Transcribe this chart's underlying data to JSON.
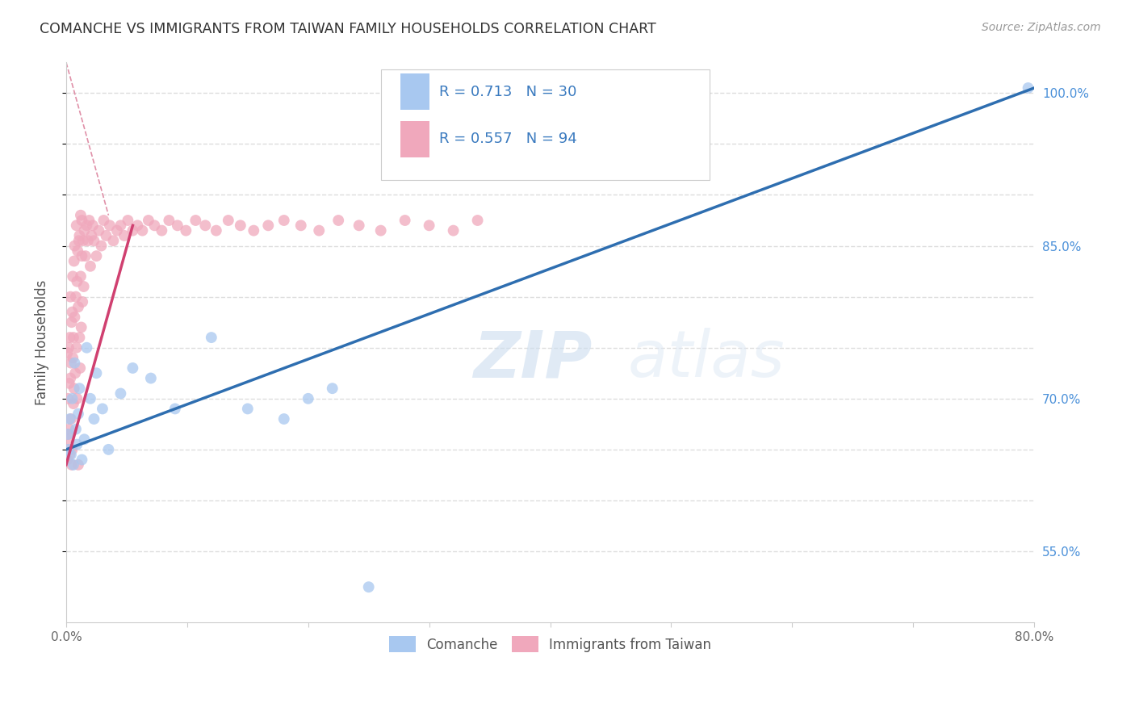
{
  "title": "COMANCHE VS IMMIGRANTS FROM TAIWAN FAMILY HOUSEHOLDS CORRELATION CHART",
  "source": "Source: ZipAtlas.com",
  "ylabel": "Family Households",
  "x_range": [
    0.0,
    80.0
  ],
  "y_range": [
    48.0,
    103.0
  ],
  "blue_R": 0.713,
  "blue_N": 30,
  "pink_R": 0.557,
  "pink_N": 94,
  "blue_color": "#a8c8f0",
  "pink_color": "#f0a8bc",
  "blue_line_color": "#2e6eb0",
  "pink_line_color": "#d04070",
  "pink_dash_color": "#e090a8",
  "legend_label_blue": "Comanche",
  "legend_label_pink": "Immigrants from Taiwan",
  "watermark": "ZIPatlas",
  "background_color": "#ffffff",
  "grid_color": "#dddddd",
  "title_color": "#333333",
  "axis_label_color": "#555555",
  "right_axis_color": "#4a90d9",
  "legend_text_color": "#3a7abf",
  "blue_scatter_x": [
    0.15,
    0.2,
    0.3,
    0.4,
    0.5,
    0.6,
    0.7,
    0.8,
    0.9,
    1.0,
    1.1,
    1.3,
    1.5,
    1.7,
    2.0,
    2.3,
    2.5,
    3.0,
    3.5,
    4.5,
    5.5,
    7.0,
    9.0,
    12.0,
    15.0,
    18.0,
    20.0,
    22.0,
    25.0,
    79.5
  ],
  "blue_scatter_y": [
    66.5,
    65.0,
    68.0,
    64.5,
    70.0,
    63.5,
    73.5,
    67.0,
    65.5,
    68.5,
    71.0,
    64.0,
    66.0,
    75.0,
    70.0,
    68.0,
    72.5,
    69.0,
    65.0,
    70.5,
    73.0,
    72.0,
    69.0,
    76.0,
    69.0,
    68.0,
    70.0,
    71.0,
    51.5,
    100.5
  ],
  "pink_scatter_x": [
    0.05,
    0.1,
    0.1,
    0.15,
    0.15,
    0.2,
    0.2,
    0.25,
    0.25,
    0.3,
    0.3,
    0.35,
    0.35,
    0.4,
    0.4,
    0.45,
    0.45,
    0.5,
    0.5,
    0.55,
    0.55,
    0.6,
    0.6,
    0.65,
    0.65,
    0.7,
    0.7,
    0.75,
    0.8,
    0.85,
    0.85,
    0.9,
    0.9,
    0.95,
    1.0,
    1.0,
    1.05,
    1.1,
    1.1,
    1.15,
    1.2,
    1.2,
    1.25,
    1.3,
    1.3,
    1.35,
    1.4,
    1.45,
    1.5,
    1.6,
    1.7,
    1.8,
    1.9,
    2.0,
    2.1,
    2.2,
    2.3,
    2.5,
    2.7,
    2.9,
    3.1,
    3.3,
    3.6,
    3.9,
    4.2,
    4.5,
    4.8,
    5.1,
    5.5,
    5.9,
    6.3,
    6.8,
    7.3,
    7.9,
    8.5,
    9.2,
    9.9,
    10.7,
    11.5,
    12.4,
    13.4,
    14.4,
    15.5,
    16.7,
    18.0,
    19.4,
    20.9,
    22.5,
    24.2,
    26.0,
    28.0,
    30.0,
    32.0,
    34.0
  ],
  "pink_scatter_y": [
    66.0,
    64.0,
    74.5,
    70.0,
    66.5,
    65.0,
    75.0,
    71.5,
    67.0,
    76.0,
    64.5,
    72.0,
    80.0,
    68.0,
    73.5,
    77.5,
    63.5,
    78.5,
    65.0,
    74.0,
    82.0,
    69.5,
    76.0,
    83.5,
    71.0,
    78.0,
    85.0,
    72.5,
    80.0,
    75.0,
    87.0,
    81.5,
    70.0,
    84.5,
    63.5,
    79.0,
    85.5,
    76.0,
    86.0,
    73.0,
    82.0,
    88.0,
    77.0,
    84.0,
    87.5,
    79.5,
    85.5,
    81.0,
    86.5,
    84.0,
    87.0,
    85.5,
    87.5,
    83.0,
    86.0,
    87.0,
    85.5,
    84.0,
    86.5,
    85.0,
    87.5,
    86.0,
    87.0,
    85.5,
    86.5,
    87.0,
    86.0,
    87.5,
    86.5,
    87.0,
    86.5,
    87.5,
    87.0,
    86.5,
    87.5,
    87.0,
    86.5,
    87.5,
    87.0,
    86.5,
    87.5,
    87.0,
    86.5,
    87.0,
    87.5,
    87.0,
    86.5,
    87.5,
    87.0,
    86.5,
    87.5,
    87.0,
    86.5,
    87.5
  ],
  "blue_line_x0": 0.0,
  "blue_line_y0": 65.0,
  "blue_line_x1": 80.0,
  "blue_line_y1": 100.5,
  "pink_line_x0": 0.0,
  "pink_line_y0": 63.5,
  "pink_line_x1": 5.5,
  "pink_line_y1": 87.0,
  "pink_dash_x0": 0.0,
  "pink_dash_y0": 103.0,
  "pink_dash_x1": 3.5,
  "pink_dash_y1": 88.0
}
